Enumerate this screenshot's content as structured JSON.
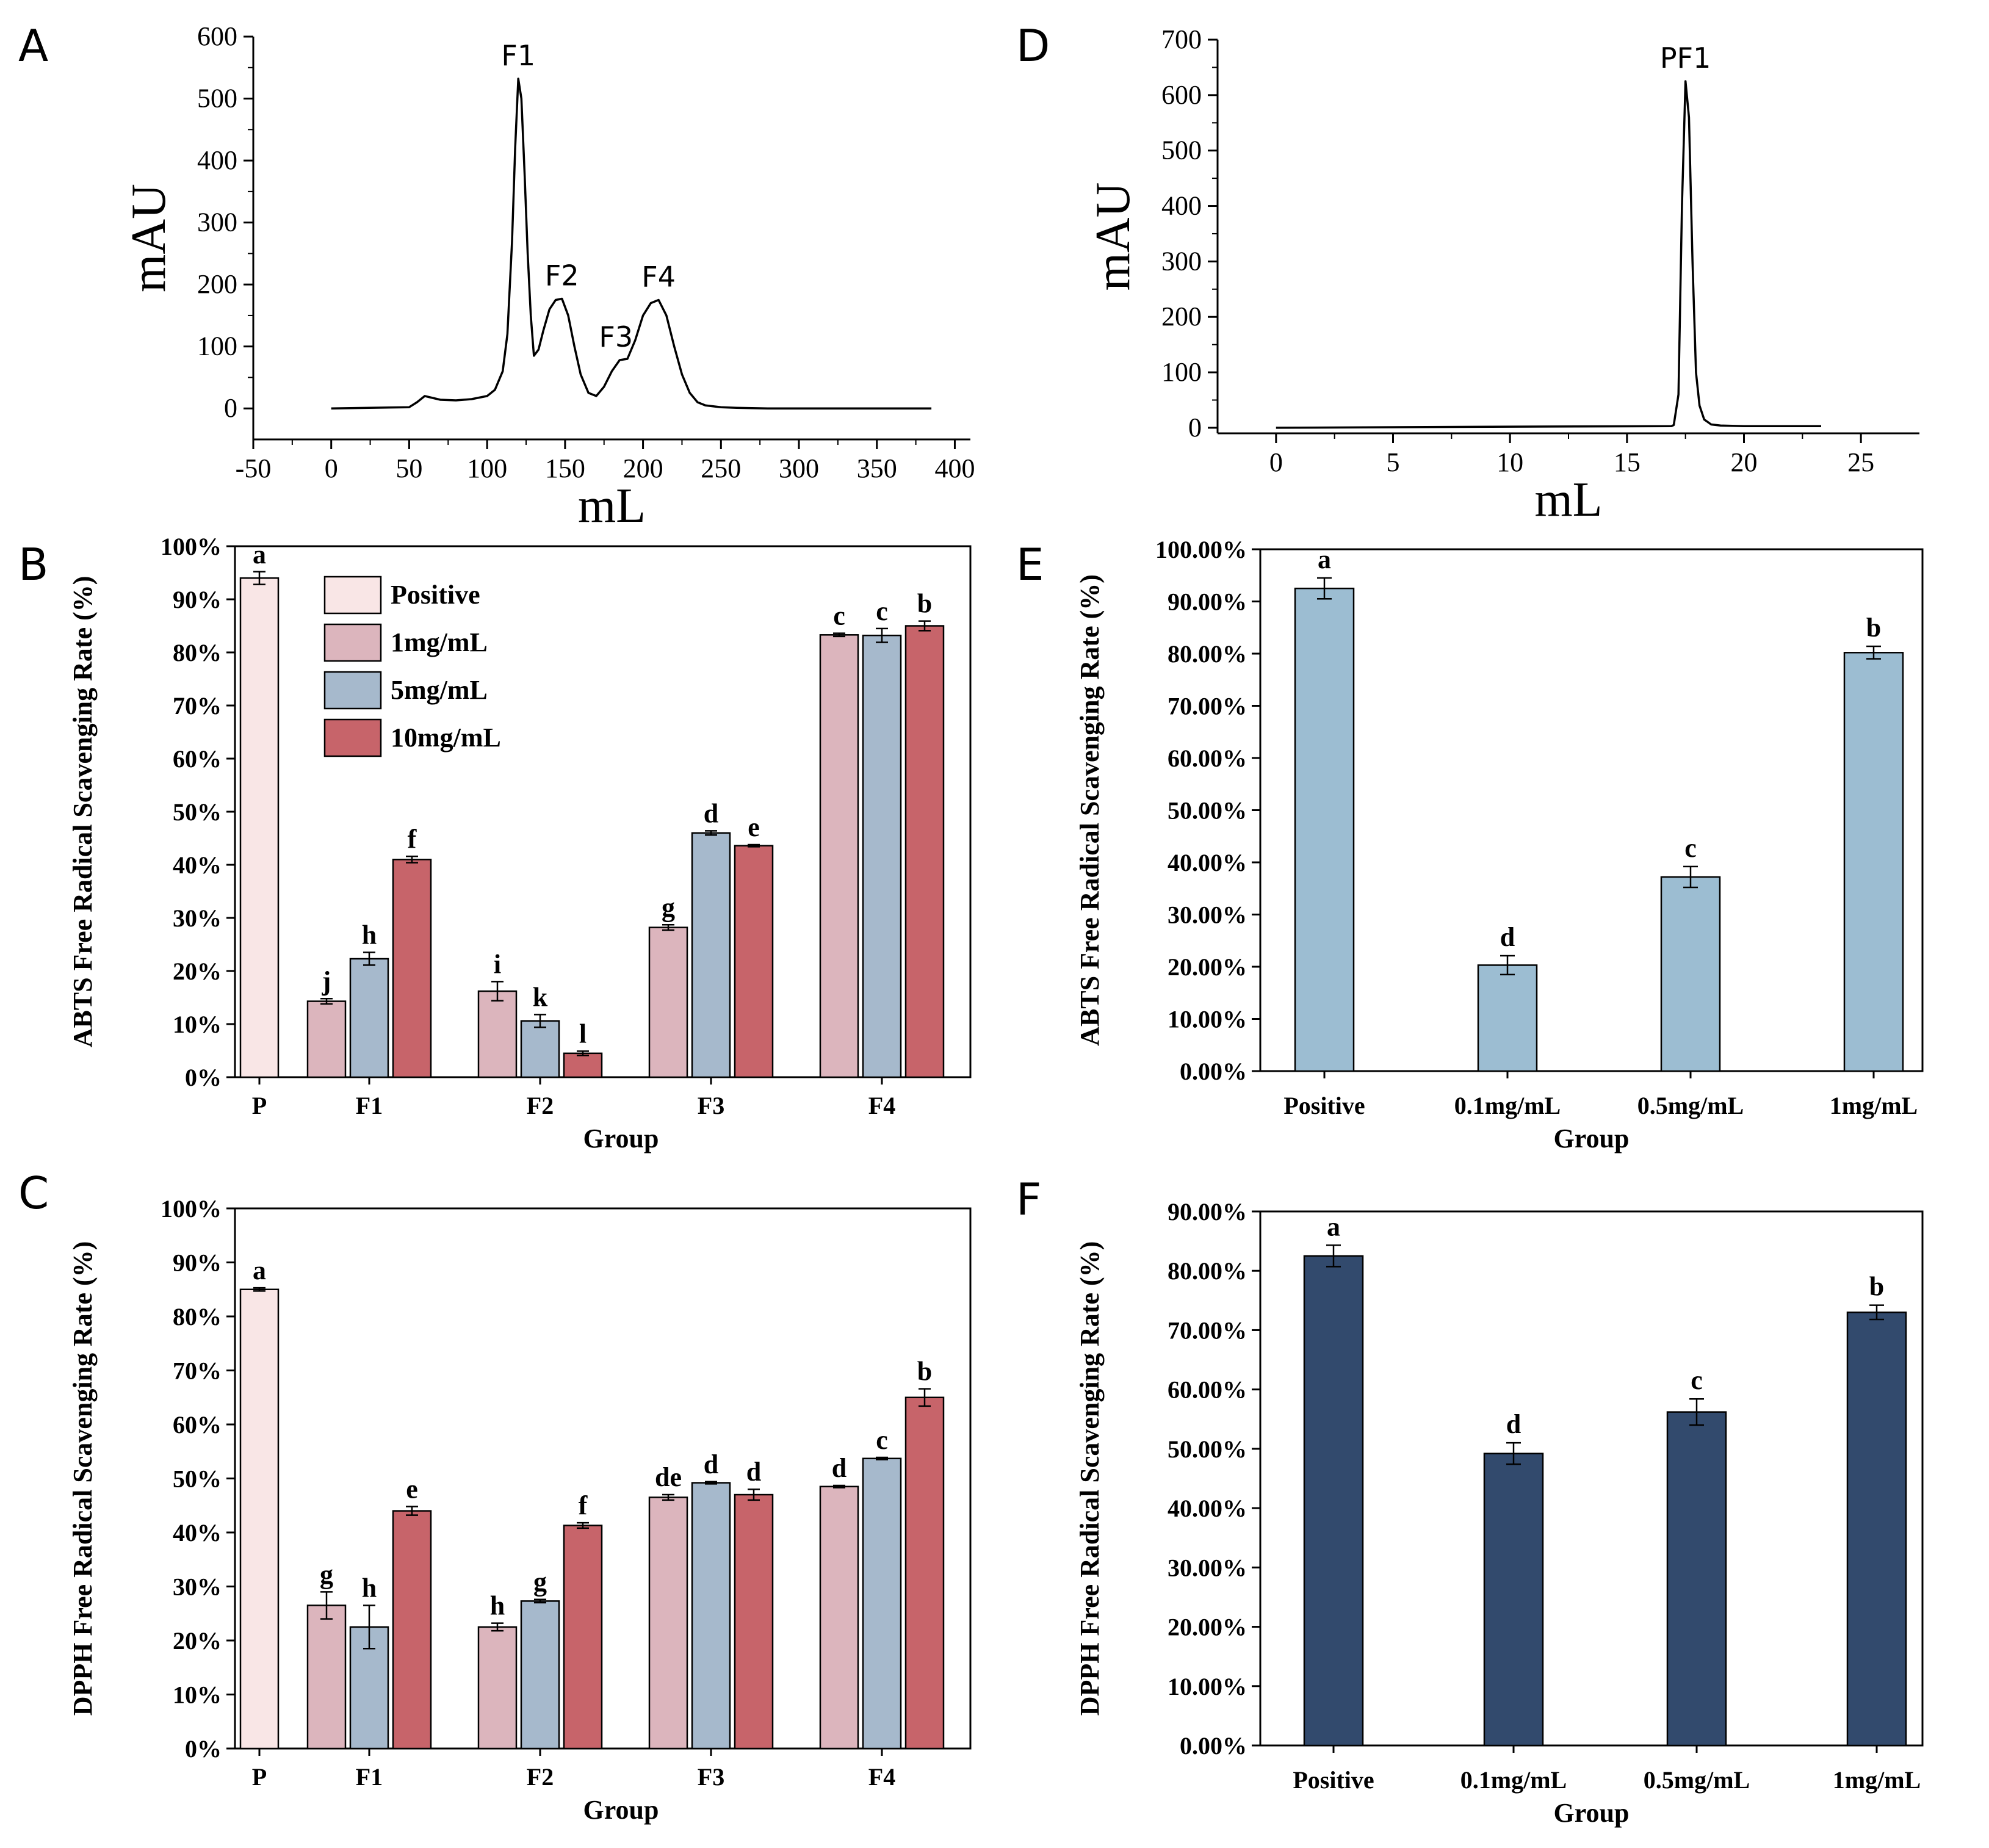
{
  "chart_data": [
    {
      "panel": "A",
      "type": "line",
      "xlabel": "mL",
      "ylabel": "mAU",
      "xlim": [
        -50,
        410
      ],
      "ylim": [
        -50,
        600
      ],
      "xticks": [
        -50,
        0,
        50,
        100,
        150,
        200,
        250,
        300,
        350,
        400
      ],
      "yticks": [
        0,
        100,
        200,
        300,
        400,
        500,
        600
      ],
      "peaks": [
        {
          "label": "F1",
          "x": 120,
          "y": 532
        },
        {
          "label": "F2",
          "x": 148,
          "y": 177
        },
        {
          "label": "F3",
          "x": 185,
          "y": 78
        },
        {
          "label": "F4",
          "x": 210,
          "y": 175
        }
      ],
      "x": [
        0,
        50,
        55,
        60,
        65,
        70,
        80,
        90,
        100,
        105,
        110,
        113,
        116,
        118,
        120,
        122,
        124,
        126,
        128,
        130,
        133,
        136,
        140,
        144,
        148,
        152,
        156,
        160,
        165,
        170,
        175,
        180,
        185,
        190,
        195,
        200,
        205,
        210,
        215,
        220,
        225,
        230,
        235,
        240,
        250,
        260,
        280,
        320,
        385
      ],
      "y": [
        0,
        2,
        10,
        20,
        17,
        14,
        13,
        15,
        20,
        30,
        60,
        120,
        270,
        420,
        532,
        500,
        380,
        250,
        150,
        85,
        95,
        125,
        160,
        175,
        177,
        150,
        100,
        55,
        25,
        20,
        35,
        60,
        78,
        80,
        110,
        150,
        170,
        175,
        150,
        100,
        55,
        25,
        10,
        5,
        2,
        1,
        0,
        0,
        0
      ]
    },
    {
      "panel": "D",
      "type": "line",
      "xlabel": "mL",
      "ylabel": "mAU",
      "xlim": [
        -2.5,
        27.5
      ],
      "ylim": [
        -10,
        700
      ],
      "xticks": [
        0,
        5,
        10,
        15,
        20,
        25
      ],
      "yticks": [
        0,
        100,
        200,
        300,
        400,
        500,
        600,
        700
      ],
      "peaks": [
        {
          "label": "PF1",
          "x": 17.5,
          "y": 625
        }
      ],
      "x": [
        0,
        10,
        16.9,
        17.0,
        17.2,
        17.35,
        17.5,
        17.65,
        17.8,
        17.95,
        18.1,
        18.3,
        18.6,
        19,
        20,
        23.3
      ],
      "y": [
        0,
        2,
        3,
        5,
        60,
        400,
        625,
        560,
        300,
        100,
        40,
        15,
        6,
        4,
        3,
        3
      ]
    },
    {
      "panel": "B",
      "type": "bar",
      "xlabel": "Group",
      "ylabel": "ABTS Free Radical Scavenging Rate (%)",
      "ylim": [
        0,
        100
      ],
      "yticks": [
        "0%",
        "10%",
        "20%",
        "30%",
        "40%",
        "50%",
        "60%",
        "70%",
        "80%",
        "90%",
        "100%"
      ],
      "legend": [
        "Positive",
        "1mg/mL",
        "5mg/mL",
        "10mg/mL"
      ],
      "categories": [
        "P",
        "F1",
        "F2",
        "F3",
        "F4"
      ],
      "series": [
        {
          "name": "Positive",
          "values": [
            94,
            null,
            null,
            null,
            null
          ],
          "errors": [
            1.2,
            null,
            null,
            null,
            null
          ],
          "labels": [
            "a",
            null,
            null,
            null,
            null
          ]
        },
        {
          "name": "1mg/mL",
          "values": [
            null,
            14.3,
            16.2,
            28.2,
            83.3
          ],
          "errors": [
            null,
            0.5,
            1.8,
            0.5,
            0.3
          ],
          "labels": [
            null,
            "j",
            "i",
            "g",
            "c"
          ]
        },
        {
          "name": "5mg/mL",
          "values": [
            null,
            22.3,
            10.6,
            46.0,
            83.2
          ],
          "errors": [
            null,
            1.2,
            1.2,
            0.4,
            1.3
          ],
          "labels": [
            null,
            "h",
            "k",
            "d",
            "c"
          ]
        },
        {
          "name": "10mg/mL",
          "values": [
            null,
            41.0,
            4.5,
            43.6,
            85.0
          ],
          "errors": [
            null,
            0.6,
            0.4,
            0.2,
            0.9
          ],
          "labels": [
            null,
            "f",
            "l",
            "e",
            "b"
          ]
        }
      ]
    },
    {
      "panel": "C",
      "type": "bar",
      "xlabel": "Group",
      "ylabel": "DPPH Free Radical Scavenging Rate (%)",
      "ylim": [
        0,
        100
      ],
      "yticks": [
        "0%",
        "10%",
        "20%",
        "30%",
        "40%",
        "50%",
        "60%",
        "70%",
        "80%",
        "90%",
        "100%"
      ],
      "categories": [
        "P",
        "F1",
        "F2",
        "F3",
        "F4"
      ],
      "series": [
        {
          "name": "Positive",
          "values": [
            85,
            null,
            null,
            null,
            null
          ],
          "errors": [
            0.3,
            null,
            null,
            null,
            null
          ],
          "labels": [
            "a",
            null,
            null,
            null,
            null
          ]
        },
        {
          "name": "1mg/mL",
          "values": [
            null,
            26.5,
            22.5,
            46.5,
            48.5
          ],
          "errors": [
            null,
            2.5,
            0.7,
            0.5,
            0.2
          ],
          "labels": [
            null,
            "g",
            "h",
            "de",
            "d"
          ]
        },
        {
          "name": "5mg/mL",
          "values": [
            null,
            22.5,
            27.3,
            49.2,
            53.7
          ],
          "errors": [
            null,
            4.0,
            0.3,
            0.2,
            0.2
          ],
          "labels": [
            null,
            "h",
            "g",
            "d",
            "c"
          ]
        },
        {
          "name": "10mg/mL",
          "values": [
            null,
            44.0,
            41.3,
            47.0,
            65.0
          ],
          "errors": [
            null,
            0.8,
            0.5,
            1.0,
            1.6
          ],
          "labels": [
            null,
            "e",
            "f",
            "d",
            "b"
          ]
        }
      ]
    },
    {
      "panel": "E",
      "type": "bar",
      "xlabel": "Group",
      "ylabel": "ABTS Free Radical Scavenging Rate (%)",
      "ylim": [
        0,
        100
      ],
      "yticks": [
        "0.00%",
        "10.00%",
        "20.00%",
        "30.00%",
        "40.00%",
        "50.00%",
        "60.00%",
        "70.00%",
        "80.00%",
        "90.00%",
        "100.00%"
      ],
      "categories": [
        "Positive",
        "0.1mg/mL",
        "0.5mg/mL",
        "1mg/mL"
      ],
      "values": [
        92.5,
        20.3,
        37.2,
        80.2
      ],
      "errors": [
        2.0,
        1.8,
        2.0,
        1.2
      ],
      "labels": [
        "a",
        "d",
        "c",
        "b"
      ]
    },
    {
      "panel": "F",
      "type": "bar",
      "xlabel": "Group",
      "ylabel": "DPPH Free Radical Scavenging Rate (%)",
      "ylim": [
        0,
        90
      ],
      "yticks": [
        "0.00%",
        "10.00%",
        "20.00%",
        "30.00%",
        "40.00%",
        "50.00%",
        "60.00%",
        "70.00%",
        "80.00%",
        "90.00%"
      ],
      "categories": [
        "Positive",
        "0.1mg/mL",
        "0.5mg/mL",
        "1mg/mL"
      ],
      "values": [
        82.5,
        49.2,
        56.2,
        73.0
      ],
      "errors": [
        1.8,
        1.8,
        2.2,
        1.2
      ],
      "labels": [
        "a",
        "d",
        "c",
        "b"
      ]
    }
  ],
  "colors": {
    "positive": "#f9e6e6",
    "c1": "#dcb5bd",
    "c5": "#a6b9cc",
    "c10": "#c7646a",
    "e_bar": "#9cbdd2",
    "f_bar": "#324a6d",
    "line": "#000000"
  }
}
